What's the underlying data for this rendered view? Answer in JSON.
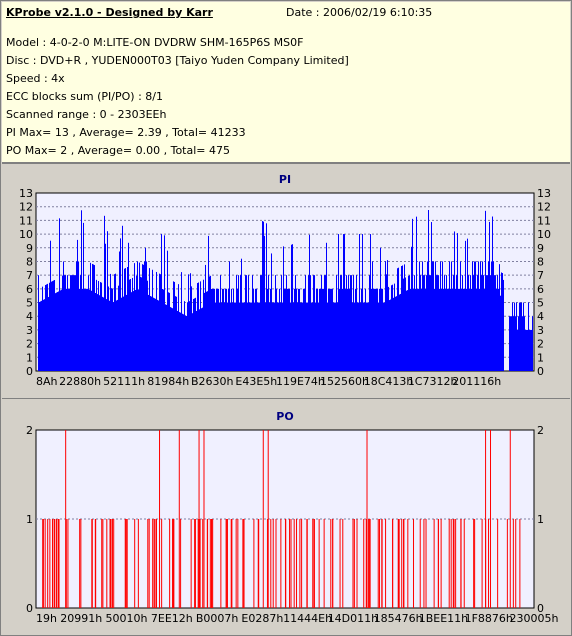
{
  "header": {
    "title": "KProbe v2.1.0 - Designed by Karr",
    "date": "Date : 2006/02/19 6:10:35",
    "lines": [
      "Model : 4-0-2-0 M:LITE-ON DVDRW SHM-165P6S MS0F",
      "Disc : DVD+R , YUDEN000T03 [Taiyo Yuden Company Limited]",
      "Speed : 4x",
      "ECC blocks sum (PI/PO) : 8/1",
      "Scanned range : 0 - 2303EEh",
      "PI Max= 13 , Average= 2.39 , Total= 41233",
      "PO Max= 2 , Average= 0.00 , Total= 475"
    ]
  },
  "colors": {
    "pi_bar": "#0000ff",
    "po_bar": "#ff0000",
    "plot_bg": "#f0f0ff",
    "info_bg": "#ffffe1"
  },
  "chart_data": [
    {
      "type": "bar",
      "title": "PI",
      "ylim": [
        0,
        13
      ],
      "yticks": [
        0,
        1,
        2,
        3,
        4,
        5,
        6,
        7,
        8,
        9,
        10,
        11,
        12,
        13
      ],
      "xticks": [
        "8Ah",
        "22880h",
        "52111h",
        "81984h",
        "B2630h",
        "E43E5h",
        "119E74h",
        "152560h",
        "18C413h",
        "1C7312h",
        "201116h"
      ],
      "grid": true,
      "profile": [
        {
          "x": 0.0,
          "base": 5,
          "peak": 12
        },
        {
          "x": 0.05,
          "base": 6,
          "peak": 11
        },
        {
          "x": 0.1,
          "base": 6,
          "peak": 12
        },
        {
          "x": 0.15,
          "base": 5,
          "peak": 11
        },
        {
          "x": 0.2,
          "base": 6,
          "peak": 10
        },
        {
          "x": 0.25,
          "base": 5,
          "peak": 10
        },
        {
          "x": 0.3,
          "base": 4,
          "peak": 9
        },
        {
          "x": 0.35,
          "base": 5,
          "peak": 10
        },
        {
          "x": 0.4,
          "base": 5,
          "peak": 10
        },
        {
          "x": 0.45,
          "base": 5,
          "peak": 11
        },
        {
          "x": 0.5,
          "base": 5,
          "peak": 10
        },
        {
          "x": 0.55,
          "base": 5,
          "peak": 11
        },
        {
          "x": 0.6,
          "base": 5,
          "peak": 10
        },
        {
          "x": 0.65,
          "base": 5,
          "peak": 10
        },
        {
          "x": 0.7,
          "base": 5,
          "peak": 10
        },
        {
          "x": 0.75,
          "base": 6,
          "peak": 11
        },
        {
          "x": 0.8,
          "base": 6,
          "peak": 12
        },
        {
          "x": 0.85,
          "base": 6,
          "peak": 11
        },
        {
          "x": 0.9,
          "base": 6,
          "peak": 13
        },
        {
          "x": 0.93,
          "base": 6,
          "peak": 10
        },
        {
          "x": 0.95,
          "base": 3,
          "peak": 5
        },
        {
          "x": 1.0,
          "base": 3,
          "peak": 5
        }
      ]
    },
    {
      "type": "bar",
      "title": "PO",
      "ylim": [
        0,
        2
      ],
      "yticks": [
        0,
        1,
        2
      ],
      "xticks": [
        "19h",
        "20991h",
        "50010h",
        "7EE12h",
        "B0007h",
        "E0287h",
        "11444Eh",
        "14D011h",
        "185476h",
        "1BEE11h",
        "1F8876h",
        "230005h"
      ],
      "grid": true,
      "peaks_at_2": [
        0.055,
        0.245,
        0.285,
        0.325,
        0.335,
        0.455,
        0.465,
        0.665,
        0.905,
        0.915,
        0.955
      ]
    }
  ]
}
